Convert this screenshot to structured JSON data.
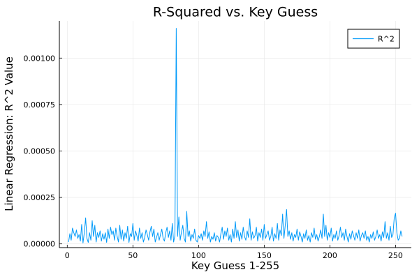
{
  "chart_data": {
    "type": "line",
    "title": "R-Squared vs. Key Guess",
    "xlabel": "Key Guess 1-255",
    "ylabel": "Linear Regression: R^2 Value",
    "xlim": [
      -6,
      262
    ],
    "ylim": [
      -2e-05,
      0.0012
    ],
    "xticks": [
      0,
      50,
      100,
      150,
      200,
      250
    ],
    "yticks": [
      0,
      0.00025,
      0.0005,
      0.00075,
      0.001
    ],
    "ytick_labels": [
      "0.00000",
      "0.00025",
      "0.00050",
      "0.00075",
      "0.00100"
    ],
    "grid": true,
    "legend_position": "top-right",
    "series": [
      {
        "name": "R^2",
        "color": "#009af9",
        "x_start": 1,
        "values": [
          1e-05,
          5.5e-05,
          2e-05,
          8.5e-05,
          6e-05,
          4e-05,
          7.5e-05,
          3e-05,
          5e-05,
          1.5e-05,
          0.000105,
          5e-06,
          6e-05,
          0.00014,
          3e-05,
          8e-06,
          6e-05,
          2e-05,
          0.000125,
          4e-05,
          0.0001,
          1e-05,
          6e-05,
          3.5e-05,
          7e-05,
          1.5e-05,
          5.5e-05,
          2.5e-05,
          6e-05,
          8e-06,
          8e-05,
          3e-05,
          9e-05,
          5e-05,
          7e-05,
          2e-05,
          8.5e-05,
          4e-05,
          1e-05,
          0.0001,
          2.5e-05,
          7.5e-05,
          1.5e-05,
          6e-05,
          3e-05,
          9.5e-05,
          8e-06,
          5.5e-05,
          4e-05,
          0.00011,
          2e-05,
          7e-05,
          4.5e-05,
          1.5e-05,
          8.5e-05,
          3e-05,
          6e-05,
          1e-05,
          3.5e-05,
          7.5e-05,
          5e-05,
          2e-05,
          6.5e-05,
          9.5e-05,
          4e-05,
          8e-05,
          1e-05,
          3.5e-05,
          6e-05,
          2e-05,
          5e-05,
          8e-05,
          3e-05,
          1.5e-05,
          6e-05,
          9e-05,
          3.5e-05,
          7e-05,
          2e-05,
          0.00011,
          1e-05,
          4.5e-05,
          0.00116,
          4e-05,
          0.000145,
          2e-05,
          6.5e-05,
          0.0001,
          3e-05,
          1e-05,
          0.000175,
          4e-05,
          7e-05,
          1.5e-05,
          5e-05,
          3e-05,
          8e-05,
          2e-05,
          1e-05,
          4.5e-05,
          3e-05,
          5.5e-05,
          2e-05,
          7e-05,
          4e-05,
          0.00012,
          3e-05,
          6.5e-05,
          1e-05,
          4e-05,
          2.5e-05,
          6e-05,
          1.5e-05,
          4.5e-05,
          3.5e-05,
          1e-05,
          5.5e-05,
          9e-05,
          2.5e-05,
          7e-05,
          4e-05,
          8.5e-05,
          2e-05,
          5e-05,
          1e-05,
          8e-05,
          3e-05,
          0.00012,
          3.5e-05,
          7.5e-05,
          1.5e-05,
          6e-05,
          2.5e-05,
          9e-05,
          4e-05,
          2e-05,
          7e-05,
          3.5e-05,
          0.000135,
          2e-05,
          6.5e-05,
          3e-05,
          4.5e-05,
          9e-05,
          1.5e-05,
          6e-05,
          3.5e-05,
          8e-05,
          2e-05,
          0.000105,
          3e-05,
          5e-05,
          7e-05,
          2e-05,
          4e-05,
          9e-05,
          1.5e-05,
          5.5e-05,
          3e-05,
          0.00011,
          2e-05,
          7.5e-05,
          4.5e-05,
          0.00016,
          3e-05,
          0.0001,
          0.000185,
          4e-05,
          7e-05,
          2.5e-05,
          6e-05,
          1.5e-05,
          5e-05,
          3.5e-05,
          8e-05,
          2e-05,
          6.5e-05,
          4e-05,
          1e-05,
          5.5e-05,
          3e-05,
          7.5e-05,
          2e-05,
          4.5e-05,
          1e-05,
          6e-05,
          3.5e-05,
          8.5e-05,
          2.5e-05,
          5e-05,
          1.5e-05,
          4e-05,
          7.5e-05,
          3e-05,
          0.00016,
          4e-05,
          0.0001,
          2e-05,
          6e-05,
          3.5e-05,
          8.5e-05,
          1.5e-05,
          5e-05,
          3e-05,
          7e-05,
          2e-05,
          4.5e-05,
          9e-05,
          3.5e-05,
          6e-05,
          2e-05,
          8e-05,
          4e-05,
          1e-05,
          5.5e-05,
          2.5e-05,
          7e-05,
          4.5e-05,
          2e-05,
          6e-05,
          3e-05,
          7.5e-05,
          1.5e-05,
          4.5e-05,
          6e-05,
          3e-05,
          7e-05,
          2e-05,
          4e-05,
          1e-05,
          5e-05,
          3e-05,
          6.5e-05,
          2e-05,
          4e-05,
          7.5e-05,
          3e-05,
          5e-05,
          1.5e-05,
          6.5e-05,
          3.5e-05,
          0.00012,
          3e-05,
          6e-05,
          2e-05,
          9.5e-05,
          3.5e-05,
          5e-05,
          0.00014,
          0.000165,
          6e-05,
          2e-05,
          3e-05,
          7e-05,
          4e-05
        ]
      }
    ]
  }
}
